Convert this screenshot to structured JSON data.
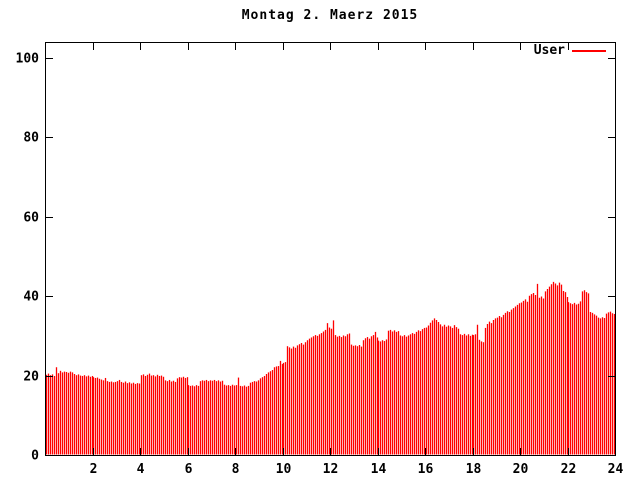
{
  "colors": {
    "background": "#ffffff",
    "axis": "#000000",
    "text": "#000000",
    "bar": "#ff0000"
  },
  "chart_data": {
    "type": "bar",
    "style": "impulses",
    "title": "Montag 2. Maerz 2015",
    "xlabel": "",
    "ylabel": "",
    "xlim": [
      0,
      24
    ],
    "ylim": [
      0,
      104
    ],
    "x_ticks": [
      2,
      4,
      6,
      8,
      10,
      12,
      14,
      16,
      18,
      20,
      22,
      24
    ],
    "y_ticks": [
      0,
      20,
      40,
      60,
      80,
      100
    ],
    "grid": false,
    "legend_position": "top-right",
    "legend": [
      {
        "label": "User",
        "color": "#ff0000"
      }
    ],
    "sample_interval_minutes": 5,
    "series": [
      {
        "name": "User",
        "color": "#ff0000",
        "values": [
          20.2,
          20.5,
          20.1,
          20.3,
          19.9,
          22.1,
          20.6,
          21.2,
          20.8,
          21.0,
          20.9,
          20.7,
          21.0,
          20.8,
          20.4,
          20.1,
          20.3,
          20.0,
          19.9,
          20.1,
          19.8,
          20.0,
          19.7,
          19.9,
          19.6,
          19.4,
          19.5,
          19.2,
          19.0,
          18.8,
          19.4,
          18.6,
          18.4,
          18.5,
          18.3,
          18.4,
          18.6,
          18.9,
          18.4,
          18.2,
          18.5,
          18.1,
          18.3,
          18.0,
          18.2,
          17.9,
          18.1,
          18.0,
          20.1,
          20.3,
          19.9,
          20.2,
          20.5,
          20.0,
          20.1,
          19.8,
          20.2,
          19.9,
          20.0,
          19.7,
          18.8,
          18.6,
          18.9,
          18.5,
          18.7,
          18.4,
          19.3,
          19.6,
          19.5,
          19.7,
          19.4,
          19.6,
          17.6,
          17.4,
          17.5,
          17.3,
          17.6,
          17.4,
          18.6,
          18.8,
          18.7,
          18.9,
          18.6,
          18.8,
          18.7,
          18.9,
          18.6,
          18.8,
          18.5,
          18.7,
          17.7,
          17.5,
          17.6,
          17.4,
          17.7,
          17.5,
          17.6,
          19.5,
          17.4,
          17.3,
          17.5,
          17.2,
          17.4,
          18.2,
          18.4,
          18.6,
          18.5,
          18.8,
          19.3,
          19.6,
          19.9,
          20.4,
          20.8,
          21.1,
          21.4,
          22.1,
          22.3,
          22.4,
          23.7,
          22.9,
          23.2,
          23.4,
          27.4,
          27.1,
          26.8,
          27.3,
          27.0,
          27.6,
          27.9,
          28.2,
          27.8,
          28.4,
          28.9,
          29.3,
          29.6,
          29.9,
          30.2,
          30.0,
          30.4,
          30.7,
          31.1,
          31.5,
          33.2,
          32.1,
          31.8,
          33.9,
          30.2,
          29.8,
          30.0,
          29.7,
          30.1,
          29.9,
          30.4,
          30.6,
          27.8,
          27.5,
          27.6,
          27.4,
          27.7,
          27.3,
          28.9,
          29.4,
          29.7,
          29.3,
          29.9,
          30.2,
          31.0,
          29.6,
          28.8,
          28.6,
          28.9,
          28.7,
          29.1,
          31.3,
          31.5,
          31.1,
          31.4,
          31.0,
          31.2,
          30.1,
          29.9,
          30.2,
          29.8,
          30.1,
          30.4,
          30.7,
          30.5,
          31.0,
          31.4,
          31.2,
          31.7,
          32.0,
          32.1,
          32.6,
          33.3,
          33.9,
          34.4,
          34.0,
          33.5,
          32.9,
          32.4,
          32.8,
          32.3,
          32.6,
          32.4,
          32.0,
          32.7,
          32.2,
          31.8,
          30.4,
          30.2,
          30.5,
          30.1,
          30.4,
          30.0,
          30.3,
          30.2,
          30.4,
          32.8,
          29.0,
          28.6,
          28.4,
          32.0,
          33.0,
          33.6,
          33.2,
          34.0,
          34.4,
          34.6,
          35.0,
          34.7,
          35.3,
          35.8,
          36.2,
          36.0,
          36.6,
          37.0,
          37.4,
          37.8,
          38.2,
          38.4,
          38.8,
          39.2,
          38.6,
          40.1,
          40.5,
          40.8,
          40.3,
          43.1,
          39.6,
          39.9,
          39.4,
          41.2,
          41.8,
          42.4,
          43.0,
          43.6,
          43.2,
          42.7,
          43.4,
          42.9,
          41.3,
          41.0,
          39.8,
          38.5,
          38.2,
          38.0,
          38.3,
          37.9,
          38.1,
          38.7,
          41.2,
          41.5,
          41.0,
          40.7,
          36.0,
          35.8,
          35.4,
          35.1,
          34.6,
          34.4,
          34.7,
          34.5,
          35.6,
          35.9,
          36.1,
          35.7,
          35.5
        ]
      }
    ]
  }
}
